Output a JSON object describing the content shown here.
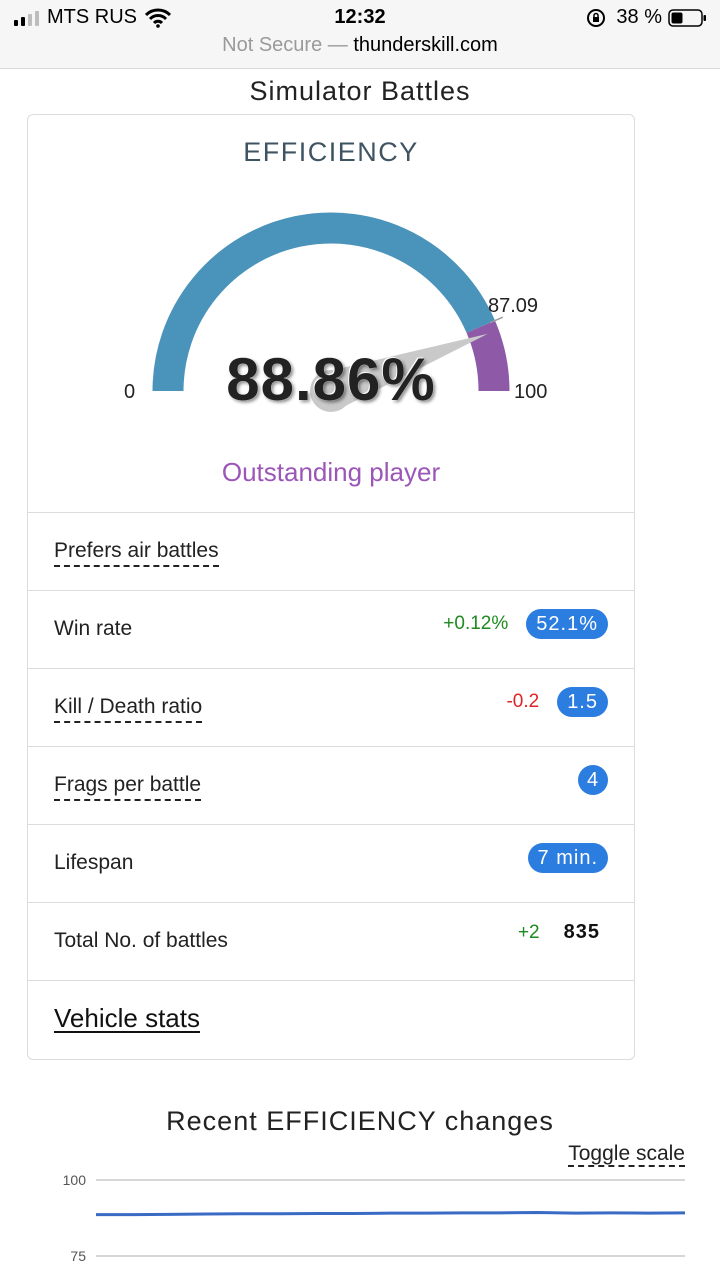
{
  "status_bar": {
    "carrier": "MTS RUS",
    "time": "12:32",
    "battery": "38 %",
    "url_security": "Not Secure —",
    "url_domain": "thunderskill.com"
  },
  "section_title": "Simulator Battles",
  "efficiency": {
    "title": "EFFICIENCY",
    "value_text": "88.86%",
    "value": 88.86,
    "marker_value": 87.09,
    "marker_label": "87.09",
    "min_label": "0",
    "max_label": "100",
    "rating": "Outstanding player",
    "colors": {
      "arc_main": "#4a93ba",
      "arc_top": "#8e5aa8",
      "rating": "#9b56b8"
    }
  },
  "stats": {
    "prefers": "Prefers air battles",
    "win_rate": {
      "label": "Win rate",
      "delta": "+0.12%",
      "value": "52.1%"
    },
    "kd": {
      "label": "Kill / Death ratio",
      "delta": "-0.2",
      "value": "1.5"
    },
    "frags": {
      "label": "Frags per battle",
      "value": "4"
    },
    "lifespan": {
      "label": "Lifespan",
      "value": "7 min."
    },
    "battles": {
      "label": "Total No. of battles",
      "delta": "+2",
      "value": "835"
    },
    "vehicle_link": "Vehicle stats"
  },
  "recent": {
    "title": "Recent EFFICIENCY changes",
    "toggle": "Toggle scale"
  },
  "chart_data": {
    "type": "line",
    "title": "Recent EFFICIENCY changes",
    "xlabel": "",
    "ylabel": "",
    "y_ticks": [
      "100",
      "75"
    ],
    "ylim": [
      75,
      100
    ],
    "grid": true,
    "series": [
      {
        "values": [
          88.6,
          88.6,
          88.7,
          88.8,
          88.9,
          88.9,
          89.0,
          89.0,
          89.1,
          89.1,
          89.2,
          89.2,
          89.3,
          89.1,
          89.2,
          89.1,
          89.2
        ]
      }
    ],
    "colors": {
      "line": "#3a6bc4",
      "grid": "#c8c8c8"
    }
  }
}
